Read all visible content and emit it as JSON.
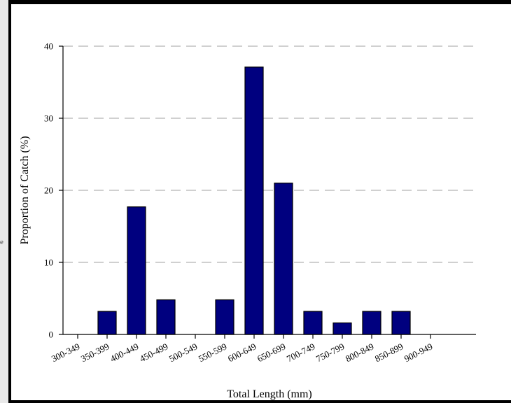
{
  "chart_data": {
    "type": "bar",
    "title": "",
    "xlabel": "Total Length (mm)",
    "ylabel": "Proportion of Catch (%)",
    "ylim": [
      0,
      40
    ],
    "yticks": [
      0,
      10,
      20,
      30,
      40
    ],
    "grid": "horizontal dashed",
    "categories": [
      "300-349",
      "350-399",
      "400-449",
      "450-499",
      "500-549",
      "550-599",
      "600-649",
      "650-699",
      "700-749",
      "750-799",
      "800-849",
      "850-899",
      "900-949"
    ],
    "values": [
      0,
      3.2,
      17.7,
      4.8,
      0,
      4.8,
      37.1,
      21.0,
      3.2,
      1.6,
      3.2,
      3.2,
      0
    ],
    "colors": {
      "bar": "#00007f",
      "grid": "#b4b4b4"
    }
  }
}
